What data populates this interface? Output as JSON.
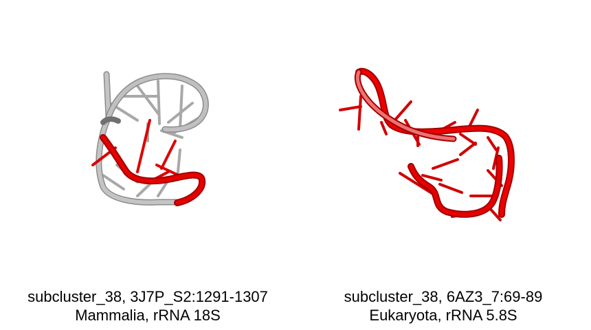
{
  "panels": [
    {
      "caption_line1": "subcluster_38, 3J7P_S2:1291-1307",
      "caption_line2": "Mammalia, rRNA 18S",
      "colors": {
        "backbone": "#b0b0b0",
        "highlight": "#e00000"
      }
    },
    {
      "caption_line1": "subcluster_38, 6AZ3_7:69-89",
      "caption_line2": "Eukaryota, rRNA 5.8S",
      "colors": {
        "backbone": "#e00000",
        "highlight": "#e00000"
      }
    }
  ]
}
